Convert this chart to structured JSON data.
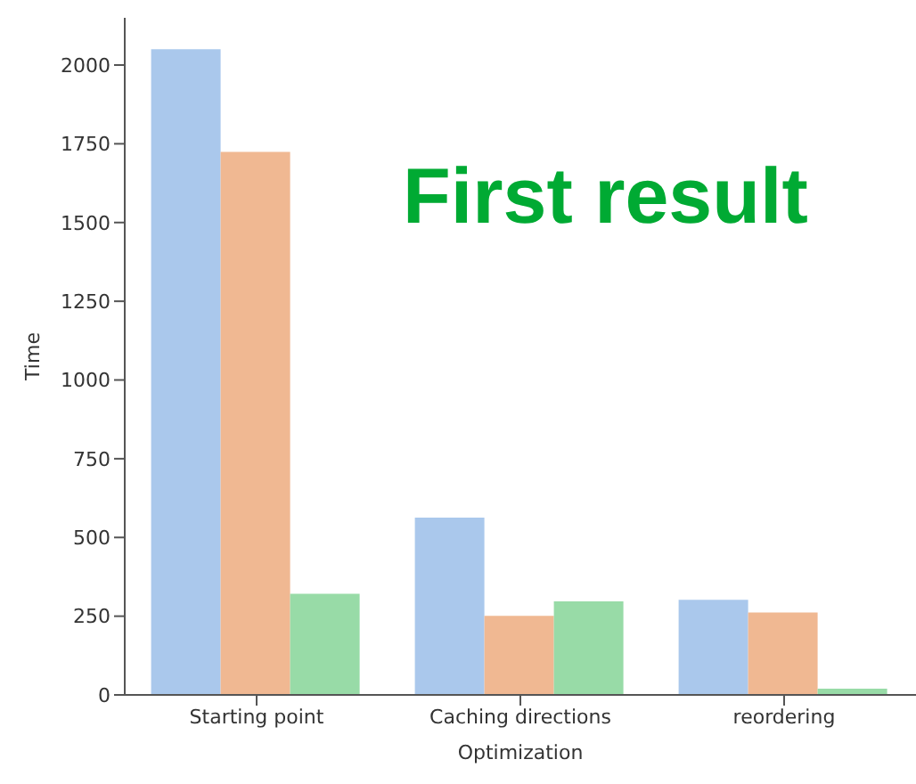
{
  "chart_data": {
    "type": "bar",
    "xlabel": "Optimization",
    "ylabel": "Time",
    "categories": [
      "Starting point",
      "Caching directions",
      "reordering"
    ],
    "series": [
      {
        "color": "#aac8ec",
        "values": [
          2050,
          563,
          302
        ]
      },
      {
        "color": "#f0b892",
        "values": [
          1724,
          251,
          262
        ]
      },
      {
        "color": "#98dba7",
        "values": [
          321,
          297,
          20
        ]
      }
    ],
    "ylim": [
      0,
      2150
    ],
    "yticks": [
      0,
      250,
      500,
      750,
      1000,
      1250,
      1500,
      1750,
      2000
    ],
    "grid": false,
    "legend": false,
    "annotations": [
      "First result"
    ]
  }
}
